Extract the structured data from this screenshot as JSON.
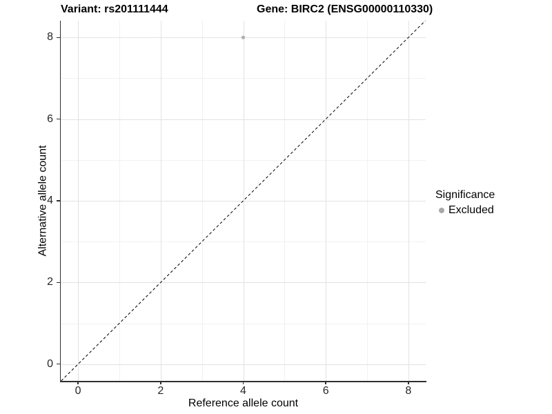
{
  "header": {
    "variant_title": "Variant: rs201111444",
    "gene_title": "Gene: BIRC2 (ENSG00000110330)"
  },
  "legend": {
    "title": "Significance",
    "items": [
      {
        "label": "Excluded",
        "swatch_color": "#a8a8a8"
      }
    ]
  },
  "colors": {
    "background": "#ffffff",
    "axis_line": "#2e2e2e",
    "tick_label": "#262626",
    "grid_major": "#e2e2e2",
    "grid_minor": "#f1f1f1",
    "point": "#b0b0b0",
    "reference_line": "#111111"
  },
  "chart_data": {
    "type": "scatter",
    "title_left": "Variant: rs201111444",
    "title_right": "Gene: BIRC2 (ENSG00000110330)",
    "xlabel": "Reference allele count",
    "ylabel": "Alternative allele count",
    "xlim": [
      -0.42,
      8.42
    ],
    "ylim": [
      -0.41,
      8.41
    ],
    "x_ticks": [
      0,
      2,
      4,
      6,
      8
    ],
    "y_ticks": [
      0,
      2,
      4,
      6,
      8
    ],
    "x_minor": [
      1,
      3,
      5,
      7
    ],
    "y_minor": [
      1,
      3,
      5,
      7
    ],
    "grid": "major and minor gridlines on white panel",
    "legend_position": "right",
    "series": [
      {
        "name": "Excluded",
        "marker": "circle",
        "color": "#b0b0b0",
        "points": [
          {
            "x": 4,
            "y": 8
          }
        ]
      }
    ],
    "reference_line": {
      "kind": "identity",
      "equation": "y = x",
      "style": "dashed",
      "color": "#111111"
    }
  }
}
